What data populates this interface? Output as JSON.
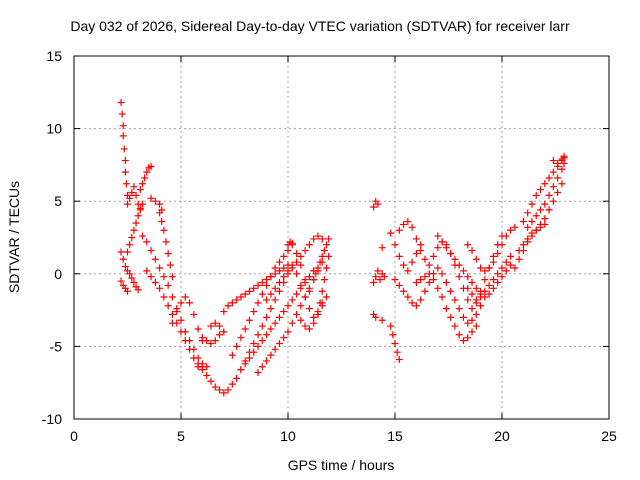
{
  "chart_data": {
    "type": "scatter",
    "title": "Day 032 of 2026, Sidereal Day-to-day VTEC variation (SDTVAR) for receiver larr",
    "xlabel": "GPS time / hours",
    "ylabel": "SDTVAR / TECUs",
    "xlim": [
      0,
      25
    ],
    "ylim": [
      -10,
      15
    ],
    "xticks": [
      "0",
      "5",
      "10",
      "15",
      "20",
      "25"
    ],
    "yticks": [
      "-10",
      "-5",
      "0",
      "5",
      "10",
      "15"
    ],
    "grid": true,
    "marker": "+",
    "color": "#ff0000",
    "series": [
      {
        "x": [
          2.2,
          2.25,
          2.3,
          2.3,
          2.35,
          2.4,
          2.4,
          2.45,
          2.5
        ],
        "y": [
          11.8,
          11.0,
          10.2,
          9.5,
          8.6,
          7.8,
          7.0,
          6.2,
          5.4
        ]
      },
      {
        "x": [
          2.2,
          2.3,
          2.4,
          2.5,
          2.6,
          2.7,
          2.8,
          2.9,
          3.0
        ],
        "y": [
          1.5,
          1.0,
          0.5,
          0.2,
          0.0,
          -0.3,
          -0.6,
          -0.9,
          -1.1
        ]
      },
      {
        "x": [
          2.2,
          2.3,
          2.4,
          2.5
        ],
        "y": [
          -0.5,
          -0.8,
          -1.0,
          -1.2
        ]
      },
      {
        "x": [
          2.5,
          2.6,
          2.7,
          2.8,
          2.9,
          3.0,
          3.1
        ],
        "y": [
          4.8,
          5.2,
          5.6,
          6.0,
          5.4,
          4.8,
          4.4
        ]
      },
      {
        "x": [
          2.5,
          2.6,
          2.7,
          2.8,
          2.9,
          3.0,
          3.1,
          3.2
        ],
        "y": [
          1.5,
          2.0,
          2.5,
          3.0,
          3.5,
          4.0,
          4.5,
          4.8
        ]
      },
      {
        "x": [
          3.1,
          3.2,
          3.3,
          3.4,
          3.5,
          3.6
        ],
        "y": [
          5.8,
          6.2,
          6.6,
          7.0,
          7.3,
          7.4
        ]
      },
      {
        "x": [
          3.2,
          3.4,
          3.6,
          3.8,
          4.0,
          4.2,
          4.4,
          4.6,
          4.8,
          5.0,
          5.2,
          5.4,
          5.6,
          5.8,
          6.0,
          6.2
        ],
        "y": [
          2.6,
          2.2,
          1.6,
          1.0,
          0.4,
          -0.2,
          -0.8,
          -1.6,
          -2.4,
          -3.2,
          -4.0,
          -4.6,
          -5.2,
          -5.8,
          -6.2,
          -6.4
        ]
      },
      {
        "x": [
          3.4,
          3.6,
          3.8,
          4.0,
          4.2,
          4.4,
          4.6,
          4.8,
          5.0,
          5.2,
          5.4,
          5.6,
          5.8,
          6.0
        ],
        "y": [
          0.2,
          -0.2,
          -0.6,
          -1.0,
          -1.6,
          -2.2,
          -2.8,
          -3.4,
          -4.0,
          -4.6,
          -5.2,
          -5.8,
          -6.2,
          -6.4
        ]
      },
      {
        "x": [
          3.6,
          3.8,
          4.0,
          4.1
        ],
        "y": [
          5.2,
          5.0,
          4.8,
          4.4
        ]
      },
      {
        "x": [
          4.0,
          4.1,
          4.2,
          4.3,
          4.4,
          4.5,
          4.6
        ],
        "y": [
          4.2,
          3.6,
          3.0,
          2.2,
          1.4,
          0.6,
          -0.2
        ]
      },
      {
        "x": [
          4.6,
          4.8,
          5.0,
          5.2,
          5.4,
          5.6,
          5.8,
          6.0
        ],
        "y": [
          -3.4,
          -2.6,
          -2.0,
          -1.6,
          -2.0,
          -2.8,
          -3.8,
          -4.6
        ]
      },
      {
        "x": [
          5.8,
          6.0,
          6.2,
          6.4,
          6.6,
          6.8
        ],
        "y": [
          -6.4,
          -6.6,
          -7.0,
          -7.4,
          -7.8,
          -8.0
        ]
      },
      {
        "x": [
          6.0,
          6.2,
          6.4,
          6.6,
          6.8
        ],
        "y": [
          -4.4,
          -4.6,
          -4.8,
          -4.6,
          -4.2
        ]
      },
      {
        "x": [
          6.4,
          6.6,
          6.8,
          7.0
        ],
        "y": [
          -3.6,
          -3.4,
          -3.6,
          -4.0
        ]
      },
      {
        "x": [
          7.0,
          7.2,
          7.4,
          7.6,
          7.8,
          8.0,
          8.2,
          8.4,
          8.6,
          8.8,
          9.0,
          9.2,
          9.4,
          9.6,
          9.8,
          10.0,
          10.2,
          10.4,
          10.6,
          10.8,
          11.0,
          11.2,
          11.4,
          11.6
        ],
        "y": [
          -8.2,
          -8.0,
          -7.6,
          -7.2,
          -6.6,
          -6.0,
          -5.4,
          -4.8,
          -4.2,
          -3.6,
          -3.0,
          -2.4,
          -1.8,
          -1.2,
          -0.6,
          0.0,
          0.4,
          0.8,
          1.2,
          1.6,
          2.0,
          2.4,
          2.6,
          2.4
        ]
      },
      {
        "x": [
          7.0,
          7.2,
          7.4,
          7.6,
          7.8,
          8.0,
          8.2,
          8.4,
          8.6,
          8.8,
          9.0,
          9.2,
          9.4,
          9.6,
          9.8,
          10.0
        ],
        "y": [
          -2.6,
          -2.2,
          -2.0,
          -1.8,
          -1.6,
          -1.4,
          -1.2,
          -1.0,
          -0.8,
          -0.6,
          -0.4,
          -0.2,
          0.0,
          0.2,
          0.4,
          0.6
        ]
      },
      {
        "x": [
          7.4,
          7.6,
          7.8,
          8.0,
          8.2,
          8.4,
          8.6,
          8.8,
          9.0,
          9.2,
          9.4,
          9.6,
          9.8,
          10.0,
          10.2,
          10.4,
          10.6,
          10.8,
          11.0
        ],
        "y": [
          -5.6,
          -5.0,
          -4.4,
          -3.8,
          -3.2,
          -2.6,
          -2.0,
          -1.4,
          -0.8,
          -0.2,
          0.4,
          0.8,
          1.2,
          1.6,
          2.0,
          1.4,
          0.6,
          -0.4,
          -1.2
        ]
      },
      {
        "x": [
          7.8,
          8.0,
          8.2,
          8.4,
          8.6,
          8.8,
          9.0,
          9.2,
          9.4,
          9.6,
          9.8,
          10.0,
          10.2,
          10.4,
          10.6,
          10.8,
          11.0,
          11.2
        ],
        "y": [
          -6.6,
          -6.2,
          -5.8,
          -5.4,
          -5.0,
          -4.6,
          -4.2,
          -3.8,
          -3.4,
          -3.0,
          -2.6,
          -2.2,
          -1.8,
          -1.4,
          -1.0,
          -0.6,
          -0.2,
          0.2
        ]
      },
      {
        "x": [
          8.6,
          8.8,
          9.0,
          9.2,
          9.4,
          9.6,
          9.8,
          10.0,
          10.2,
          10.4,
          10.6,
          10.8,
          11.0,
          11.2,
          11.4,
          11.6
        ],
        "y": [
          -6.8,
          -6.4,
          -6.0,
          -5.6,
          -5.2,
          -4.8,
          -4.4,
          -4.0,
          -3.4,
          -2.8,
          -2.2,
          -1.6,
          -1.0,
          -0.4,
          0.2,
          0.8
        ]
      },
      {
        "x": [
          9.0,
          9.2,
          9.4,
          9.6,
          9.8,
          10.0,
          10.2,
          10.4,
          10.6,
          10.8,
          11.0,
          11.2,
          11.4,
          11.6
        ],
        "y": [
          -1.8,
          -1.4,
          -1.0,
          -0.6,
          -0.2,
          0.2,
          0.6,
          0.0,
          -0.8,
          -1.6,
          -2.4,
          -3.0,
          -2.6,
          -2.0
        ]
      },
      {
        "x": [
          10.0,
          10.1,
          10.2
        ],
        "y": [
          2.0,
          2.2,
          2.1
        ]
      },
      {
        "x": [
          10.6,
          10.8,
          11.0,
          11.2,
          11.4,
          11.6,
          11.8
        ],
        "y": [
          -3.2,
          -3.6,
          -3.8,
          -3.4,
          -2.8,
          -2.2,
          -1.6
        ]
      },
      {
        "x": [
          11.2,
          11.3,
          11.4,
          11.5,
          11.6,
          11.7,
          11.8,
          11.9
        ],
        "y": [
          -0.4,
          0.0,
          0.4,
          0.8,
          1.2,
          1.6,
          2.0,
          2.4
        ]
      },
      {
        "x": [
          11.4,
          11.5,
          11.6,
          11.7,
          11.8,
          11.9
        ],
        "y": [
          -2.8,
          -2.0,
          -1.2,
          -0.4,
          0.4,
          1.2
        ]
      },
      {
        "x": [
          14.0,
          14.1,
          14.2
        ],
        "y": [
          4.6,
          5.0,
          4.8
        ]
      },
      {
        "x": [
          14.0,
          14.1,
          14.2,
          14.3
        ],
        "y": [
          -0.6,
          -0.2,
          0.2,
          -0.4
        ]
      },
      {
        "x": [
          14.0,
          14.1
        ],
        "y": [
          -2.8,
          -3.0
        ]
      },
      {
        "x": [
          14.4
        ],
        "y": [
          1.8
        ]
      },
      {
        "x": [
          14.4,
          14.5
        ],
        "y": [
          0.0,
          -0.2
        ]
      },
      {
        "x": [
          14.4
        ],
        "y": [
          -3.2
        ]
      },
      {
        "x": [
          14.8,
          14.9,
          15.0,
          15.1,
          15.2
        ],
        "y": [
          -3.6,
          -4.2,
          -4.8,
          -5.4,
          -5.9
        ]
      },
      {
        "x": [
          14.8,
          15.0,
          15.2,
          15.4,
          15.6,
          15.8,
          16.0,
          16.2
        ],
        "y": [
          2.8,
          2.0,
          1.2,
          0.6,
          0.2,
          0.8,
          1.4,
          2.0
        ]
      },
      {
        "x": [
          15.0,
          15.2,
          15.4,
          15.6,
          15.8,
          16.0,
          16.2,
          16.4,
          16.6,
          16.8,
          17.0,
          17.2,
          17.4,
          17.6,
          17.8,
          18.0,
          18.2,
          18.4,
          18.6,
          18.8,
          19.0
        ],
        "y": [
          -0.4,
          -0.8,
          -1.2,
          -1.6,
          -2.0,
          -2.2,
          -1.8,
          -1.2,
          -0.6,
          0.0,
          0.4,
          0.0,
          -0.6,
          -1.2,
          -1.8,
          -2.4,
          -3.0,
          -3.4,
          -3.2,
          -2.8,
          -2.2
        ]
      },
      {
        "x": [
          15.2,
          15.4,
          15.6,
          15.8,
          16.0,
          16.2,
          16.4,
          16.6,
          16.8,
          17.0,
          17.2,
          17.4,
          17.6,
          17.8,
          18.0,
          18.2,
          18.4,
          18.6,
          18.8,
          19.0,
          19.2,
          19.4,
          19.6,
          19.8,
          20.0
        ],
        "y": [
          3.0,
          3.4,
          3.6,
          3.2,
          2.4,
          1.6,
          1.0,
          0.6,
          1.2,
          1.8,
          2.2,
          2.0,
          1.4,
          0.6,
          -0.2,
          -1.0,
          -1.8,
          -2.4,
          -2.0,
          -1.2,
          -0.4,
          0.4,
          1.2,
          2.0,
          2.6
        ]
      },
      {
        "x": [
          16.0,
          16.2,
          16.4,
          16.6,
          16.8,
          17.0,
          17.2,
          17.4,
          17.6,
          17.8,
          18.0,
          18.2,
          18.4,
          18.6,
          18.8
        ],
        "y": [
          -0.6,
          -0.4,
          -0.2,
          0.0,
          -0.4,
          -1.0,
          -1.6,
          -2.4,
          -3.0,
          -3.6,
          -4.2,
          -4.6,
          -4.4,
          -4.0,
          -3.6
        ]
      },
      {
        "x": [
          17.0,
          17.2,
          17.4,
          17.6,
          17.8,
          18.0,
          18.2,
          18.4,
          18.6,
          18.8,
          19.0,
          19.2,
          19.4,
          19.6,
          19.8,
          20.0,
          20.2,
          20.4
        ],
        "y": [
          2.6,
          2.2,
          1.8,
          1.4,
          1.0,
          0.6,
          0.2,
          -0.2,
          -0.6,
          -1.0,
          -1.4,
          -1.6,
          -1.4,
          -1.0,
          -0.6,
          -0.2,
          0.2,
          0.6
        ]
      },
      {
        "x": [
          18.4,
          18.6,
          18.8,
          19.0,
          19.2,
          19.4,
          19.6,
          19.8,
          20.0,
          20.2,
          20.4
        ],
        "y": [
          -1.0,
          -1.4,
          -1.8,
          -1.6,
          -1.2,
          -0.8,
          -0.4,
          0.0,
          0.4,
          0.8,
          1.2
        ]
      },
      {
        "x": [
          18.4,
          18.6,
          18.8,
          19.0,
          19.2,
          19.4,
          19.6,
          19.8,
          20.0,
          20.2,
          20.4,
          20.6
        ],
        "y": [
          2.0,
          1.6,
          1.0,
          0.4,
          0.2,
          0.4,
          0.8,
          1.4,
          2.0,
          2.6,
          3.0,
          3.2
        ]
      },
      {
        "x": [
          20.6,
          20.8,
          21.0,
          21.2,
          21.4,
          21.6,
          21.8,
          22.0,
          22.2,
          22.4,
          22.6,
          22.8
        ],
        "y": [
          0.4,
          1.0,
          1.6,
          2.2,
          2.6,
          3.0,
          3.4,
          3.8,
          4.4,
          5.0,
          5.6,
          6.2
        ]
      },
      {
        "x": [
          20.8,
          21.0,
          21.2,
          21.4,
          21.6,
          21.8,
          22.0
        ],
        "y": [
          1.6,
          2.0,
          2.4,
          2.8,
          3.0,
          3.2,
          3.4
        ]
      },
      {
        "x": [
          21.0,
          21.2,
          21.4,
          21.6,
          21.8,
          22.0,
          22.2,
          22.4,
          22.6,
          22.8,
          22.9
        ],
        "y": [
          3.6,
          4.2,
          4.8,
          5.4,
          5.8,
          6.2,
          6.6,
          7.0,
          7.4,
          7.8,
          8.0
        ]
      },
      {
        "x": [
          21.2,
          21.4,
          21.6,
          21.8,
          22.0,
          22.2,
          22.4,
          22.6,
          22.8,
          22.9
        ],
        "y": [
          3.2,
          3.6,
          4.0,
          4.4,
          4.8,
          5.4,
          6.0,
          6.6,
          7.2,
          7.6
        ]
      },
      {
        "x": [
          22.2
        ],
        "y": [
          4.4
        ]
      },
      {
        "x": [
          22.4,
          22.6,
          22.8,
          22.9
        ],
        "y": [
          7.8,
          7.6,
          7.9,
          8.1
        ]
      }
    ]
  }
}
